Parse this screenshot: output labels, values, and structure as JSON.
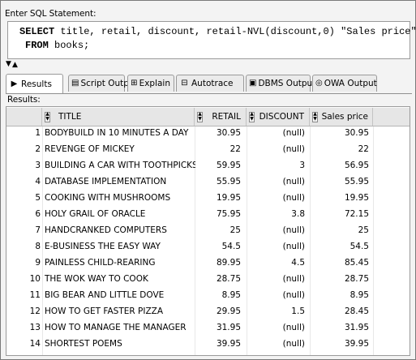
{
  "editor": {
    "label": "Enter SQL Statement:",
    "line1": {
      "kw": "SELECT",
      "rest": " title, retail, discount, retail-NVL(discount,0) \"Sales price\""
    },
    "line2": {
      "kw": "FROM",
      "rest": " books;"
    }
  },
  "tabs": [
    {
      "label": "Results",
      "icon": "play-icon",
      "active": true
    },
    {
      "label": "Script Output",
      "icon": "script-icon",
      "active": false
    },
    {
      "label": "Explain",
      "icon": "explain-icon",
      "active": false
    },
    {
      "label": "Autotrace",
      "icon": "autotrace-icon",
      "active": false
    },
    {
      "label": "DBMS Output",
      "icon": "dbms-icon",
      "active": false
    },
    {
      "label": "OWA Output",
      "icon": "owa-icon",
      "active": false
    }
  ],
  "results_label": "Results:",
  "columns": [
    "TITLE",
    "RETAIL",
    "DISCOUNT",
    "Sales price"
  ],
  "rows": [
    {
      "n": "1",
      "title": "BODYBUILD IN 10 MINUTES A DAY",
      "retail": "30.95",
      "discount": "(null)",
      "sales": "30.95"
    },
    {
      "n": "2",
      "title": "REVENGE OF MICKEY",
      "retail": "22",
      "discount": "(null)",
      "sales": "22"
    },
    {
      "n": "3",
      "title": "BUILDING A CAR WITH TOOTHPICKS",
      "retail": "59.95",
      "discount": "3",
      "sales": "56.95"
    },
    {
      "n": "4",
      "title": "DATABASE IMPLEMENTATION",
      "retail": "55.95",
      "discount": "(null)",
      "sales": "55.95"
    },
    {
      "n": "5",
      "title": "COOKING WITH MUSHROOMS",
      "retail": "19.95",
      "discount": "(null)",
      "sales": "19.95"
    },
    {
      "n": "6",
      "title": "HOLY GRAIL OF ORACLE",
      "retail": "75.95",
      "discount": "3.8",
      "sales": "72.15"
    },
    {
      "n": "7",
      "title": "HANDCRANKED COMPUTERS",
      "retail": "25",
      "discount": "(null)",
      "sales": "25"
    },
    {
      "n": "8",
      "title": "E-BUSINESS THE EASY WAY",
      "retail": "54.5",
      "discount": "(null)",
      "sales": "54.5"
    },
    {
      "n": "9",
      "title": "PAINLESS CHILD-REARING",
      "retail": "89.95",
      "discount": "4.5",
      "sales": "85.45"
    },
    {
      "n": "10",
      "title": "THE WOK WAY TO COOK",
      "retail": "28.75",
      "discount": "(null)",
      "sales": "28.75"
    },
    {
      "n": "11",
      "title": "BIG BEAR AND LITTLE DOVE",
      "retail": "8.95",
      "discount": "(null)",
      "sales": "8.95"
    },
    {
      "n": "12",
      "title": "HOW TO GET FASTER PIZZA",
      "retail": "29.95",
      "discount": "1.5",
      "sales": "28.45"
    },
    {
      "n": "13",
      "title": "HOW TO MANAGE THE MANAGER",
      "retail": "31.95",
      "discount": "(null)",
      "sales": "31.95"
    },
    {
      "n": "14",
      "title": "SHORTEST POEMS",
      "retail": "39.95",
      "discount": "(null)",
      "sales": "39.95"
    }
  ]
}
